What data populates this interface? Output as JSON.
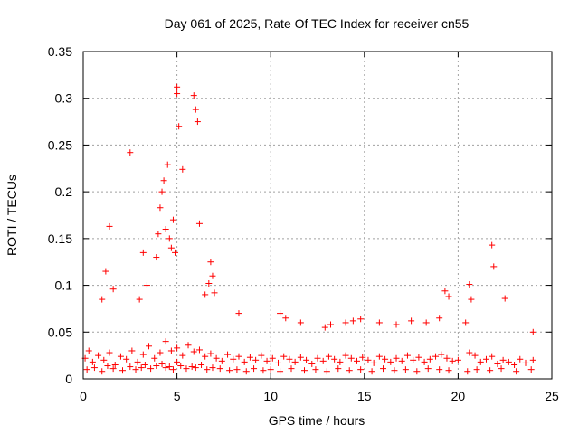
{
  "chart_data": {
    "type": "scatter",
    "title": "Day 061 of 2025, Rate Of TEC Index for receiver cn55",
    "xlabel": "GPS time / hours",
    "ylabel": "ROTI / TECUs",
    "xlim": [
      0,
      25
    ],
    "ylim": [
      0,
      0.35
    ],
    "x_ticks": [
      "0",
      "5",
      "10",
      "15",
      "20",
      "25"
    ],
    "y_ticks": [
      "0",
      "0.05",
      "0.1",
      "0.15",
      "0.2",
      "0.25",
      "0.3",
      "0.35"
    ],
    "grid": true,
    "marker": "plus",
    "color": "#ff0000",
    "series": [
      {
        "x": [
          0.1,
          0.3,
          0.5,
          0.8,
          1.1,
          1.4,
          1.7,
          2.0,
          2.3,
          2.6,
          2.9,
          3.2,
          3.5,
          3.8,
          4.1,
          4.4,
          4.7,
          5.0,
          5.3,
          5.6,
          5.9,
          6.2,
          6.5,
          6.8,
          7.1,
          7.4,
          7.7,
          8.0,
          8.3,
          8.6,
          8.9,
          9.2,
          9.5,
          9.8,
          10.1,
          10.4,
          10.7,
          11.0,
          11.3,
          11.6,
          11.9,
          12.2,
          12.5,
          12.8,
          13.1,
          13.4,
          13.7,
          14.0,
          14.3,
          14.6,
          14.9,
          15.2,
          15.5,
          15.8,
          16.1,
          16.4,
          16.7,
          17.0,
          17.3,
          17.6,
          17.9,
          18.2,
          18.5,
          18.8,
          19.1,
          19.4,
          19.7,
          20.0,
          20.6,
          20.9,
          21.2,
          21.5,
          21.8,
          22.1,
          22.4,
          22.7,
          23.0,
          23.3,
          23.6,
          24.0,
          0.2,
          0.6,
          1.0,
          1.3,
          1.6,
          2.1,
          2.5,
          2.8,
          3.1,
          3.3,
          3.6,
          3.9,
          4.2,
          4.4,
          4.6,
          4.8,
          5.0,
          5.2,
          5.5,
          5.8,
          6.0,
          6.3,
          6.6,
          6.9,
          7.3,
          7.8,
          8.2,
          8.7,
          9.1,
          9.6,
          10.0,
          10.5,
          11.1,
          11.8,
          12.4,
          13.0,
          13.6,
          14.2,
          14.8,
          15.4,
          16.0,
          16.6,
          17.2,
          17.8,
          18.4,
          19.0,
          19.5,
          20.5,
          21.0,
          21.7,
          22.3,
          23.1,
          23.9,
          1.0,
          1.2,
          1.4,
          1.6,
          2.5,
          3.0,
          3.2,
          3.4,
          3.9,
          4.0,
          4.1,
          4.2,
          4.3,
          4.4,
          4.5,
          4.6,
          4.7,
          4.8,
          4.9,
          5.0,
          5.0,
          5.1,
          5.3,
          5.9,
          6.0,
          6.1,
          6.2,
          6.5,
          6.7,
          6.8,
          6.9,
          7.0,
          8.3,
          10.5,
          10.8,
          11.6,
          12.9,
          13.2,
          14.0,
          14.4,
          14.8,
          15.8,
          16.7,
          17.5,
          18.3,
          19.0,
          19.3,
          19.5,
          20.4,
          20.6,
          20.7,
          21.8,
          21.9,
          22.5,
          24.0
        ],
        "y": [
          0.022,
          0.03,
          0.018,
          0.025,
          0.02,
          0.028,
          0.015,
          0.024,
          0.021,
          0.03,
          0.018,
          0.026,
          0.035,
          0.022,
          0.028,
          0.04,
          0.03,
          0.033,
          0.025,
          0.036,
          0.029,
          0.031,
          0.024,
          0.027,
          0.022,
          0.019,
          0.026,
          0.021,
          0.024,
          0.018,
          0.023,
          0.02,
          0.025,
          0.019,
          0.022,
          0.017,
          0.024,
          0.021,
          0.018,
          0.023,
          0.02,
          0.016,
          0.022,
          0.019,
          0.024,
          0.021,
          0.018,
          0.025,
          0.022,
          0.019,
          0.023,
          0.02,
          0.017,
          0.024,
          0.021,
          0.018,
          0.022,
          0.019,
          0.025,
          0.02,
          0.023,
          0.018,
          0.021,
          0.024,
          0.026,
          0.022,
          0.019,
          0.02,
          0.028,
          0.025,
          0.018,
          0.021,
          0.024,
          0.016,
          0.02,
          0.018,
          0.015,
          0.021,
          0.017,
          0.02,
          0.01,
          0.012,
          0.008,
          0.014,
          0.011,
          0.009,
          0.013,
          0.01,
          0.012,
          0.015,
          0.011,
          0.014,
          0.016,
          0.012,
          0.013,
          0.01,
          0.018,
          0.014,
          0.011,
          0.013,
          0.012,
          0.015,
          0.01,
          0.012,
          0.011,
          0.009,
          0.01,
          0.008,
          0.011,
          0.009,
          0.01,
          0.008,
          0.011,
          0.009,
          0.01,
          0.008,
          0.011,
          0.009,
          0.01,
          0.008,
          0.011,
          0.009,
          0.01,
          0.008,
          0.011,
          0.01,
          0.009,
          0.008,
          0.01,
          0.009,
          0.011,
          0.008,
          0.01,
          0.085,
          0.115,
          0.163,
          0.096,
          0.242,
          0.085,
          0.135,
          0.1,
          0.13,
          0.155,
          0.183,
          0.2,
          0.212,
          0.16,
          0.229,
          0.15,
          0.14,
          0.17,
          0.135,
          0.312,
          0.305,
          0.27,
          0.224,
          0.303,
          0.288,
          0.275,
          0.166,
          0.09,
          0.102,
          0.125,
          0.11,
          0.092,
          0.07,
          0.07,
          0.065,
          0.06,
          0.055,
          0.058,
          0.06,
          0.062,
          0.064,
          0.06,
          0.058,
          0.062,
          0.06,
          0.065,
          0.094,
          0.088,
          0.06,
          0.101,
          0.085,
          0.143,
          0.12,
          0.086,
          0.05
        ]
      }
    ]
  }
}
